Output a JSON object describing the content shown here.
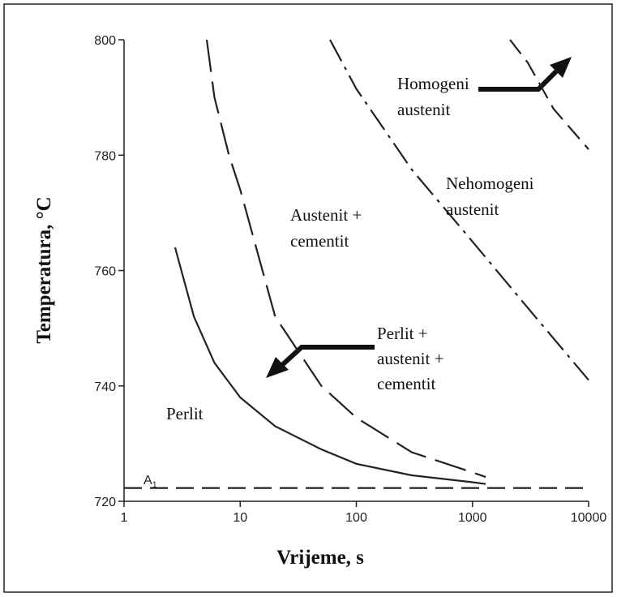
{
  "chart_data": {
    "type": "line",
    "log_x": true,
    "x_label": "Vrijeme, s",
    "y_label": "Temperatura, °C",
    "xlim": [
      1,
      10000
    ],
    "xticks": [
      1,
      10,
      100,
      1000,
      10000
    ],
    "ylim": [
      720,
      800
    ],
    "yticks": [
      720,
      740,
      760,
      780,
      800
    ],
    "series": [
      {
        "color": "#222",
        "dash": "solid",
        "x": [
          2.75,
          4,
          6,
          10,
          20,
          50,
          100,
          300,
          1000,
          1300
        ],
        "values": [
          764,
          752,
          744,
          738,
          733,
          729,
          726.5,
          724.5,
          723.3,
          723
        ]
      },
      {
        "color": "#222",
        "dash": "long-dash",
        "x": [
          5.15,
          6,
          8,
          10,
          20,
          50,
          100,
          300,
          1000,
          1300
        ],
        "values": [
          800,
          790,
          780,
          774,
          752,
          740,
          734.5,
          728.5,
          725,
          724.2
        ]
      },
      {
        "color": "#222",
        "dash": "dash-dot",
        "x": [
          59.3,
          100,
          300,
          1000,
          3000,
          10000
        ],
        "values": [
          800,
          791.5,
          777.5,
          765,
          753.5,
          741
        ]
      },
      {
        "color": "#222",
        "dash": "dash",
        "x": [
          2104,
          3000,
          5000,
          10000
        ],
        "values": [
          800,
          796,
          788,
          781
        ]
      },
      {
        "color": "#222",
        "dash": "dash",
        "x": [
          1,
          10000
        ],
        "values": [
          722.3,
          722.3
        ]
      }
    ],
    "annotations": [
      {
        "lines": [
          "Homogeni",
          "austenit"
        ]
      },
      {
        "lines": [
          "Nehomogeni",
          "austenit"
        ]
      },
      {
        "lines": [
          "Austenit +",
          "cementit"
        ]
      },
      {
        "lines": [
          "Perlit +",
          "austenit +",
          "cementit"
        ]
      },
      {
        "lines": [
          "Perlit"
        ]
      }
    ],
    "a1_label": {
      "text": "A",
      "sub": "1"
    }
  }
}
